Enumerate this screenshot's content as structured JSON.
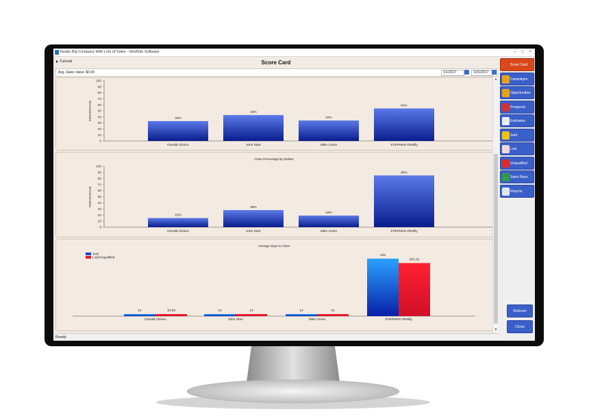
{
  "window": {
    "title": "Really Big Company With Lots of Sales - HindSite Software"
  },
  "page": {
    "title": "Score Card",
    "tutorial_label": "Tutorial"
  },
  "filters": {
    "avg_sales_value": "Avg. Sales Value: $0.00",
    "start_date": "1/1/2017",
    "end_date": "1/31/2017"
  },
  "status": {
    "text": "Ready"
  },
  "sidebar": {
    "items": [
      {
        "label": "Score Card",
        "icon": "scorecard-icon",
        "color": "#d9481b"
      },
      {
        "label": "Campaigns",
        "icon": "campaigns-icon",
        "color": "#e8a21a"
      },
      {
        "label": "Opportunities",
        "icon": "opportunities-icon",
        "color": "#e8a21a"
      },
      {
        "label": "Prospects",
        "icon": "prospects-icon",
        "color": "#d23232"
      },
      {
        "label": "Estimates",
        "icon": "estimates-icon",
        "color": "#e6eef8"
      },
      {
        "label": "Sold",
        "icon": "sold-icon",
        "color": "#e8c21a"
      },
      {
        "label": "Lost",
        "icon": "lost-icon",
        "color": "#f1d8d8"
      },
      {
        "label": "Unqualified",
        "icon": "unqualified-icon",
        "color": "#d92b2b"
      },
      {
        "label": "Sales Reps",
        "icon": "sales-reps-icon",
        "color": "#2e9c4a"
      },
      {
        "label": "Reports",
        "icon": "reports-icon",
        "color": "#dfe7f5"
      }
    ],
    "refresh_label": "Refresh",
    "close_label": "Close"
  },
  "chart_data": [
    {
      "type": "bar",
      "title": "",
      "ylabel": "PERCENTAGE",
      "ylim": [
        0,
        100
      ],
      "yticks": [
        "0",
        "10",
        "20",
        "30",
        "40",
        "50",
        "60",
        "70",
        "80",
        "90",
        "100"
      ],
      "categories": [
        "Donald Clinton",
        "John Starr",
        "Mike Cents",
        "STEPHEN OReilly"
      ],
      "values": [
        33,
        43,
        34,
        54
      ],
      "data_labels": [
        "33%",
        "43%",
        "34%",
        "54%"
      ]
    },
    {
      "type": "bar",
      "title": "Close Percentage By Dollars",
      "ylabel": "PERCENTAGE",
      "ylim": [
        0,
        100
      ],
      "yticks": [
        "0",
        "10",
        "20",
        "30",
        "40",
        "50",
        "60",
        "70",
        "80",
        "90",
        "100"
      ],
      "categories": [
        "Donald Clinton",
        "John Starr",
        "Mike Cents",
        "STEPHEN OReilly"
      ],
      "values": [
        15,
        28,
        19,
        85
      ],
      "data_labels": [
        "15%",
        "28%",
        "19%",
        "85%"
      ]
    },
    {
      "type": "bar",
      "title": "Average Days to Close",
      "legend": "top-left",
      "categories": [
        "Donald Clinton",
        "John Starr",
        "Mike Cents",
        "STEPHEN OReilly"
      ],
      "series": [
        {
          "name": "Sold",
          "color": "#1446c8",
          "values": [
            14,
            14,
            14,
            426
          ],
          "data_labels": [
            "14",
            "14",
            "14",
            "426"
          ]
        },
        {
          "name": "Lost/Unqualified",
          "color": "#e8182a",
          "values": [
            10.83,
            14,
            14,
            393.32
          ],
          "data_labels": [
            "10.83",
            "14",
            "14",
            "393.32"
          ]
        }
      ]
    }
  ]
}
